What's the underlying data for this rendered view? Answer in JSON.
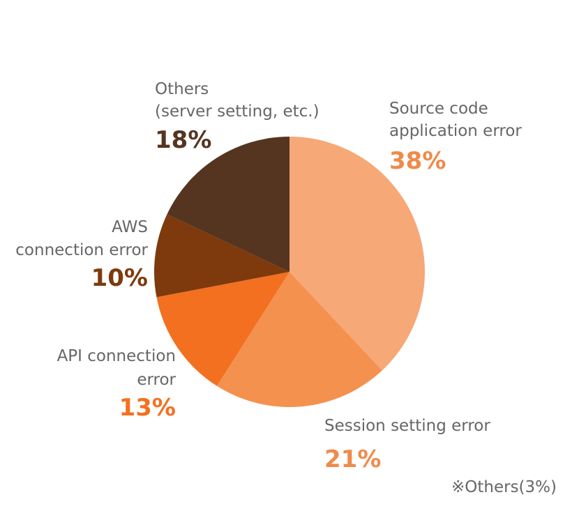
{
  "chart_data": {
    "type": "pie",
    "categories": [
      [
        "Source code",
        "application error"
      ],
      [
        "Session setting error"
      ],
      [
        "API connection",
        "error"
      ],
      [
        "AWS",
        "connection error"
      ],
      [
        "Others",
        "(server setting, etc.)"
      ]
    ],
    "values": [
      38,
      21,
      13,
      10,
      18
    ],
    "value_labels": [
      "38%",
      "21%",
      "13%",
      "10%",
      "18%"
    ],
    "colors": [
      "#f6a877",
      "#f4914e",
      "#f37021",
      "#7e3a0c",
      "#553520"
    ],
    "value_label_colors": [
      "#f08a4b",
      "#f08a4b",
      "#f37021",
      "#7e3a0c",
      "#553520"
    ],
    "note": "※Others(3%)"
  }
}
